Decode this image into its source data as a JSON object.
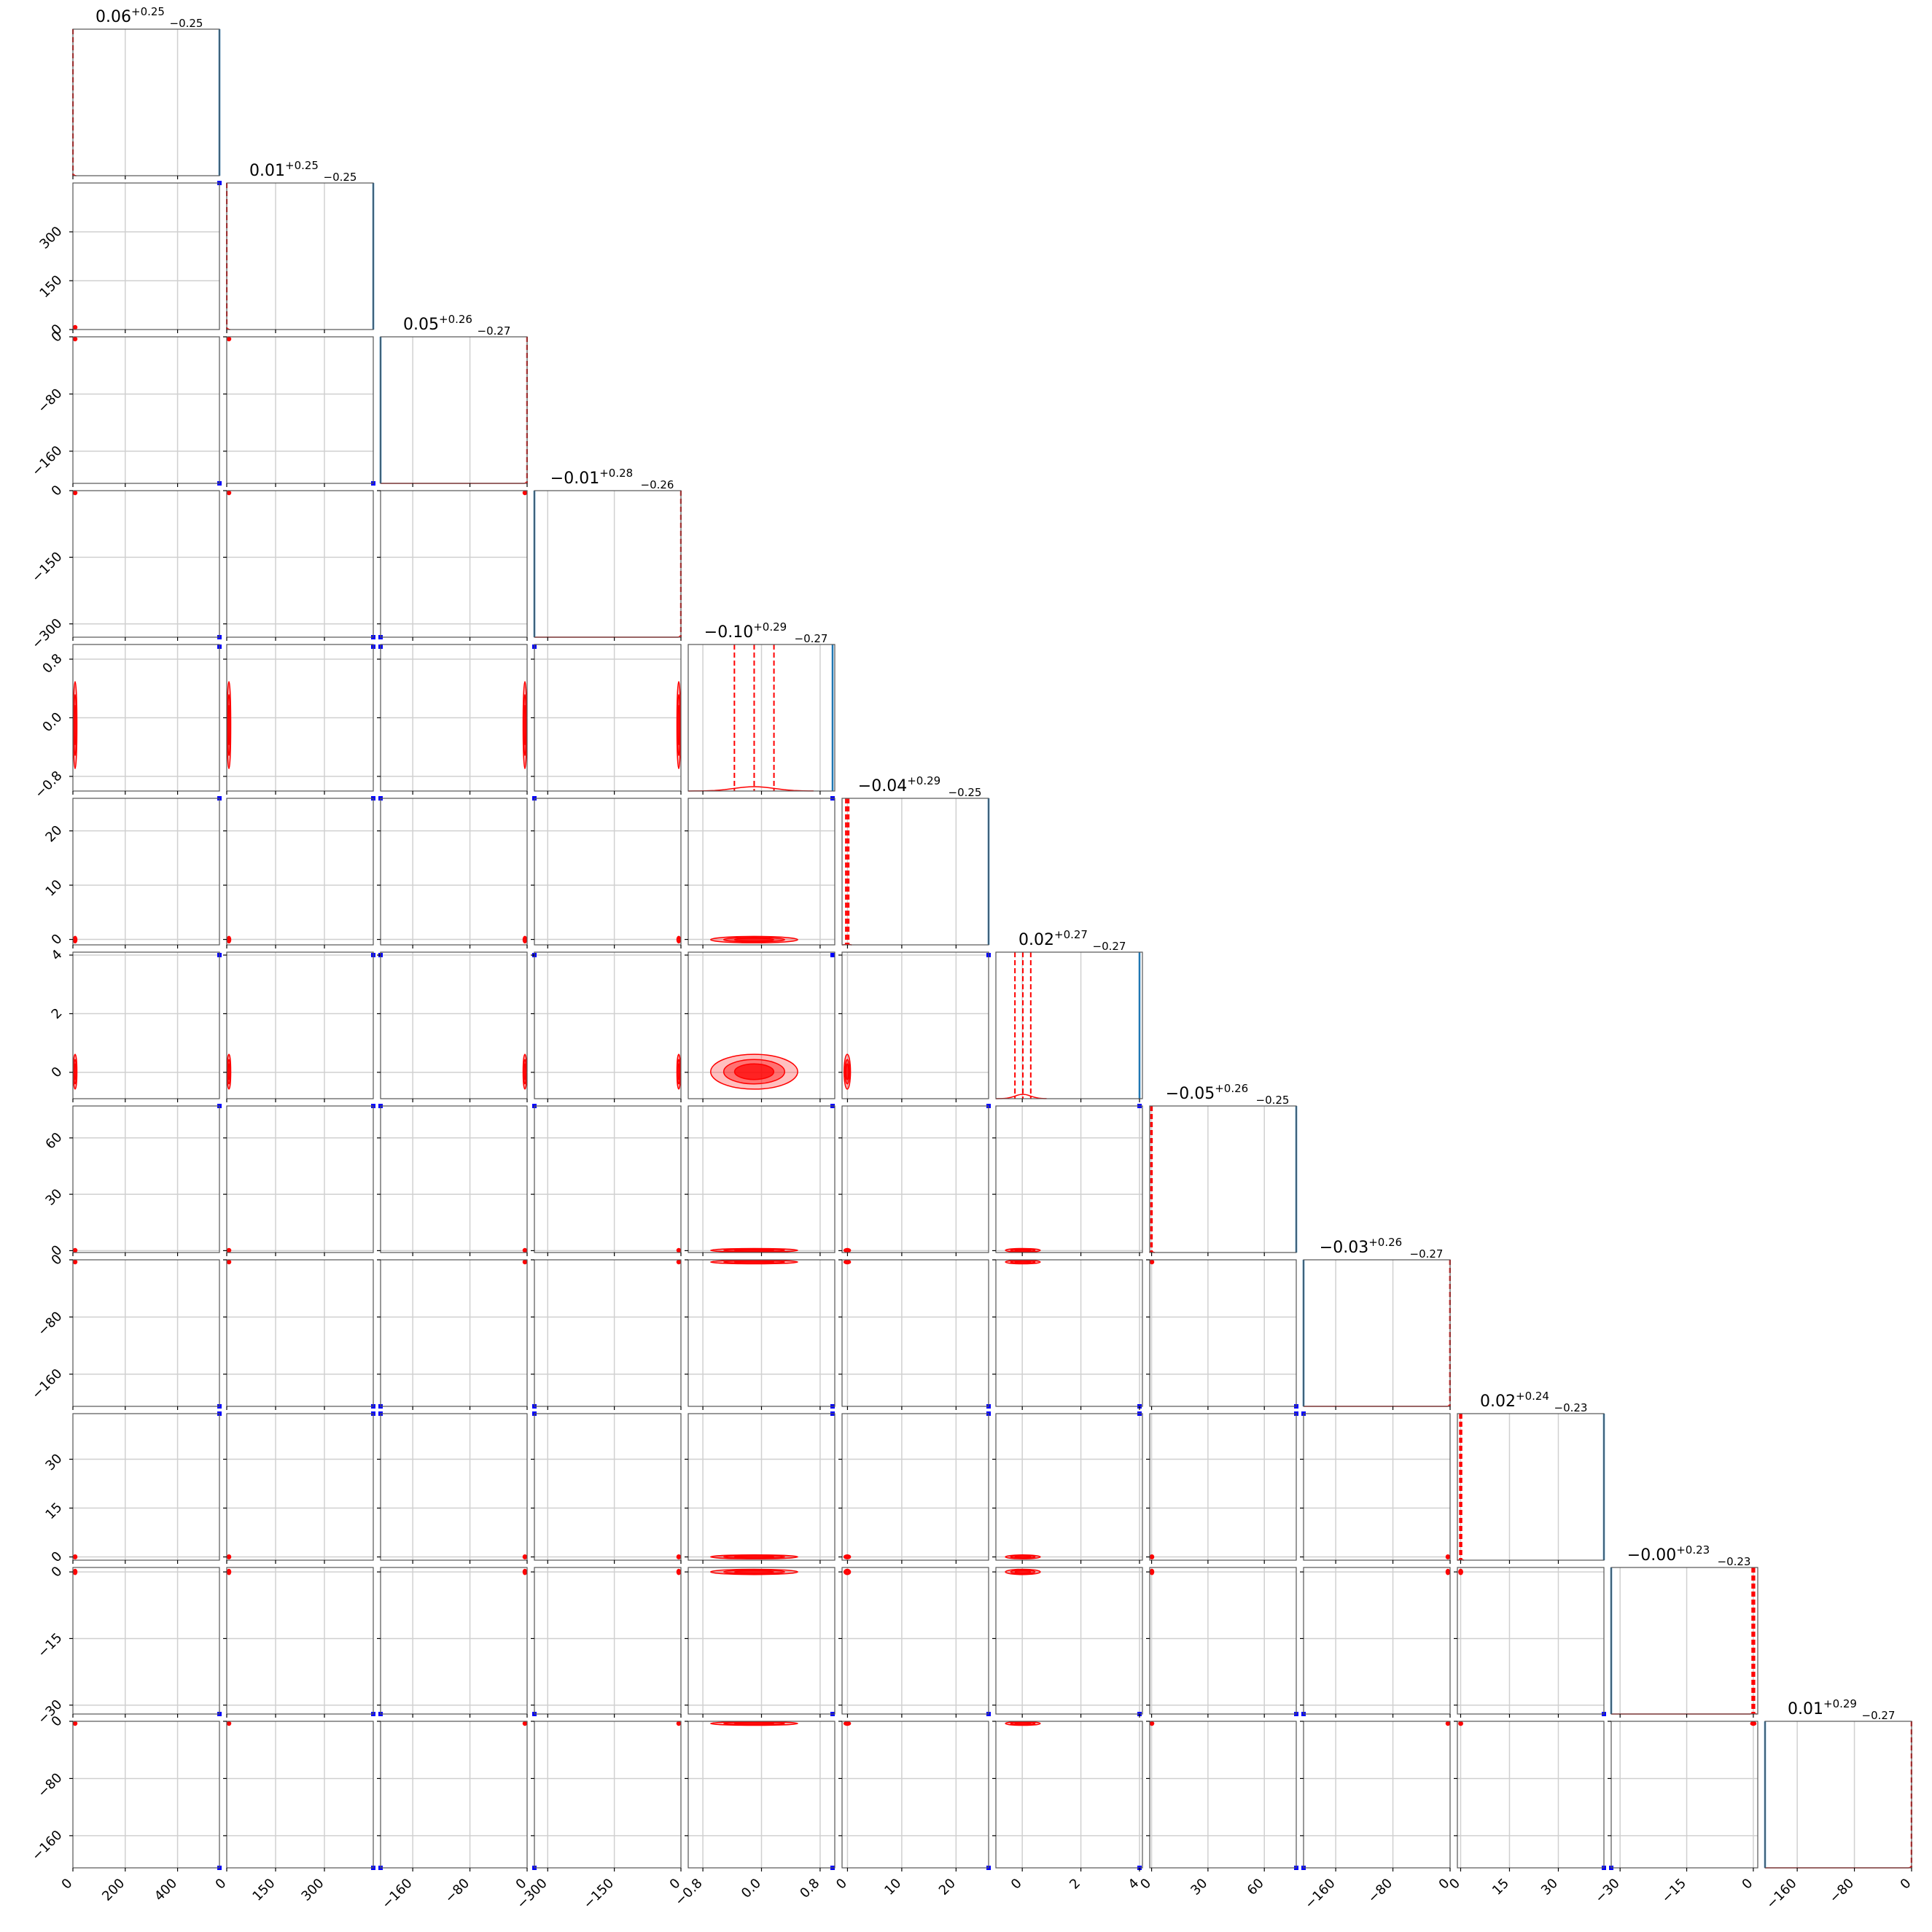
{
  "chart_data": {
    "type": "corner",
    "n_params": 12,
    "grid": true,
    "colors": {
      "primary": "#ff0000",
      "secondary": "#0000ff",
      "hist_secondary": "#1f77b4",
      "grid": "#d0d0d0",
      "frame": "#555555"
    },
    "diagonal_titles": [
      {
        "median": "0.06",
        "plus": "+0.25",
        "minus": "−0.25"
      },
      {
        "median": "0.01",
        "plus": "+0.25",
        "minus": "−0.25"
      },
      {
        "median": "0.05",
        "plus": "+0.26",
        "minus": "−0.27"
      },
      {
        "median": "−0.01",
        "plus": "+0.28",
        "minus": "−0.26"
      },
      {
        "median": "−0.10",
        "plus": "+0.29",
        "minus": "−0.27"
      },
      {
        "median": "−0.04",
        "plus": "+0.29",
        "minus": "−0.25"
      },
      {
        "median": "0.02",
        "plus": "+0.27",
        "minus": "−0.27"
      },
      {
        "median": "−0.05",
        "plus": "+0.26",
        "minus": "−0.25"
      },
      {
        "median": "−0.03",
        "plus": "+0.26",
        "minus": "−0.27"
      },
      {
        "median": "0.02",
        "plus": "+0.24",
        "minus": "−0.23"
      },
      {
        "median": "−0.00",
        "plus": "+0.23",
        "minus": "−0.23"
      },
      {
        "median": "0.01",
        "plus": "+0.29",
        "minus": "−0.27"
      }
    ],
    "params": [
      {
        "range": [
          0,
          560
        ],
        "ticks": [
          0,
          200,
          400
        ],
        "tick_labels": [
          "0",
          "200",
          "400"
        ],
        "primary_center": 0.06,
        "secondary_center": 560
      },
      {
        "range": [
          0,
          450
        ],
        "ticks": [
          0,
          150,
          300
        ],
        "tick_labels": [
          "0",
          "150",
          "300"
        ],
        "primary_center": 0.01,
        "secondary_center": 450
      },
      {
        "range": [
          -205,
          0
        ],
        "ticks": [
          -160,
          -80,
          0
        ],
        "tick_labels": [
          "−160",
          "−80",
          "0"
        ],
        "primary_center": 0.05,
        "secondary_center": -205
      },
      {
        "range": [
          -330,
          0
        ],
        "ticks": [
          -300,
          -150,
          0
        ],
        "tick_labels": [
          "−300",
          "−150",
          "0"
        ],
        "primary_center": -0.01,
        "secondary_center": -330
      },
      {
        "range": [
          -1.0,
          1.0
        ],
        "ticks": [
          -0.8,
          0.0,
          0.8
        ],
        "tick_labels": [
          "−0.8",
          "0.0",
          "0.8"
        ],
        "primary_center": -0.1,
        "secondary_center": 0.97
      },
      {
        "range": [
          -1,
          26
        ],
        "ticks": [
          0,
          10,
          20
        ],
        "tick_labels": [
          "0",
          "10",
          "20"
        ],
        "primary_center": -0.04,
        "secondary_center": 26
      },
      {
        "range": [
          -0.9,
          4.1
        ],
        "ticks": [
          0,
          2,
          4
        ],
        "tick_labels": [
          "0",
          "2",
          "4"
        ],
        "primary_center": 0.02,
        "secondary_center": 4.0
      },
      {
        "range": [
          -1,
          77
        ],
        "ticks": [
          0,
          30,
          60
        ],
        "tick_labels": [
          "0",
          "30",
          "60"
        ],
        "primary_center": -0.05,
        "secondary_center": 77
      },
      {
        "range": [
          -205,
          0
        ],
        "ticks": [
          -160,
          -80,
          0
        ],
        "tick_labels": [
          "−160",
          "−80",
          "0"
        ],
        "primary_center": -0.03,
        "secondary_center": -205
      },
      {
        "range": [
          -1,
          44
        ],
        "ticks": [
          0,
          15,
          30
        ],
        "tick_labels": [
          "0",
          "15",
          "30"
        ],
        "primary_center": 0.02,
        "secondary_center": 44
      },
      {
        "range": [
          -32,
          1
        ],
        "ticks": [
          -30,
          -15,
          0
        ],
        "tick_labels": [
          "−30",
          "−15",
          "0"
        ],
        "primary_center": -0.0,
        "secondary_center": -32
      },
      {
        "range": [
          -205,
          0
        ],
        "ticks": [
          -160,
          -80,
          0
        ],
        "tick_labels": [
          "−160",
          "−80",
          "0"
        ],
        "primary_center": 0.01,
        "secondary_center": -205
      }
    ]
  }
}
